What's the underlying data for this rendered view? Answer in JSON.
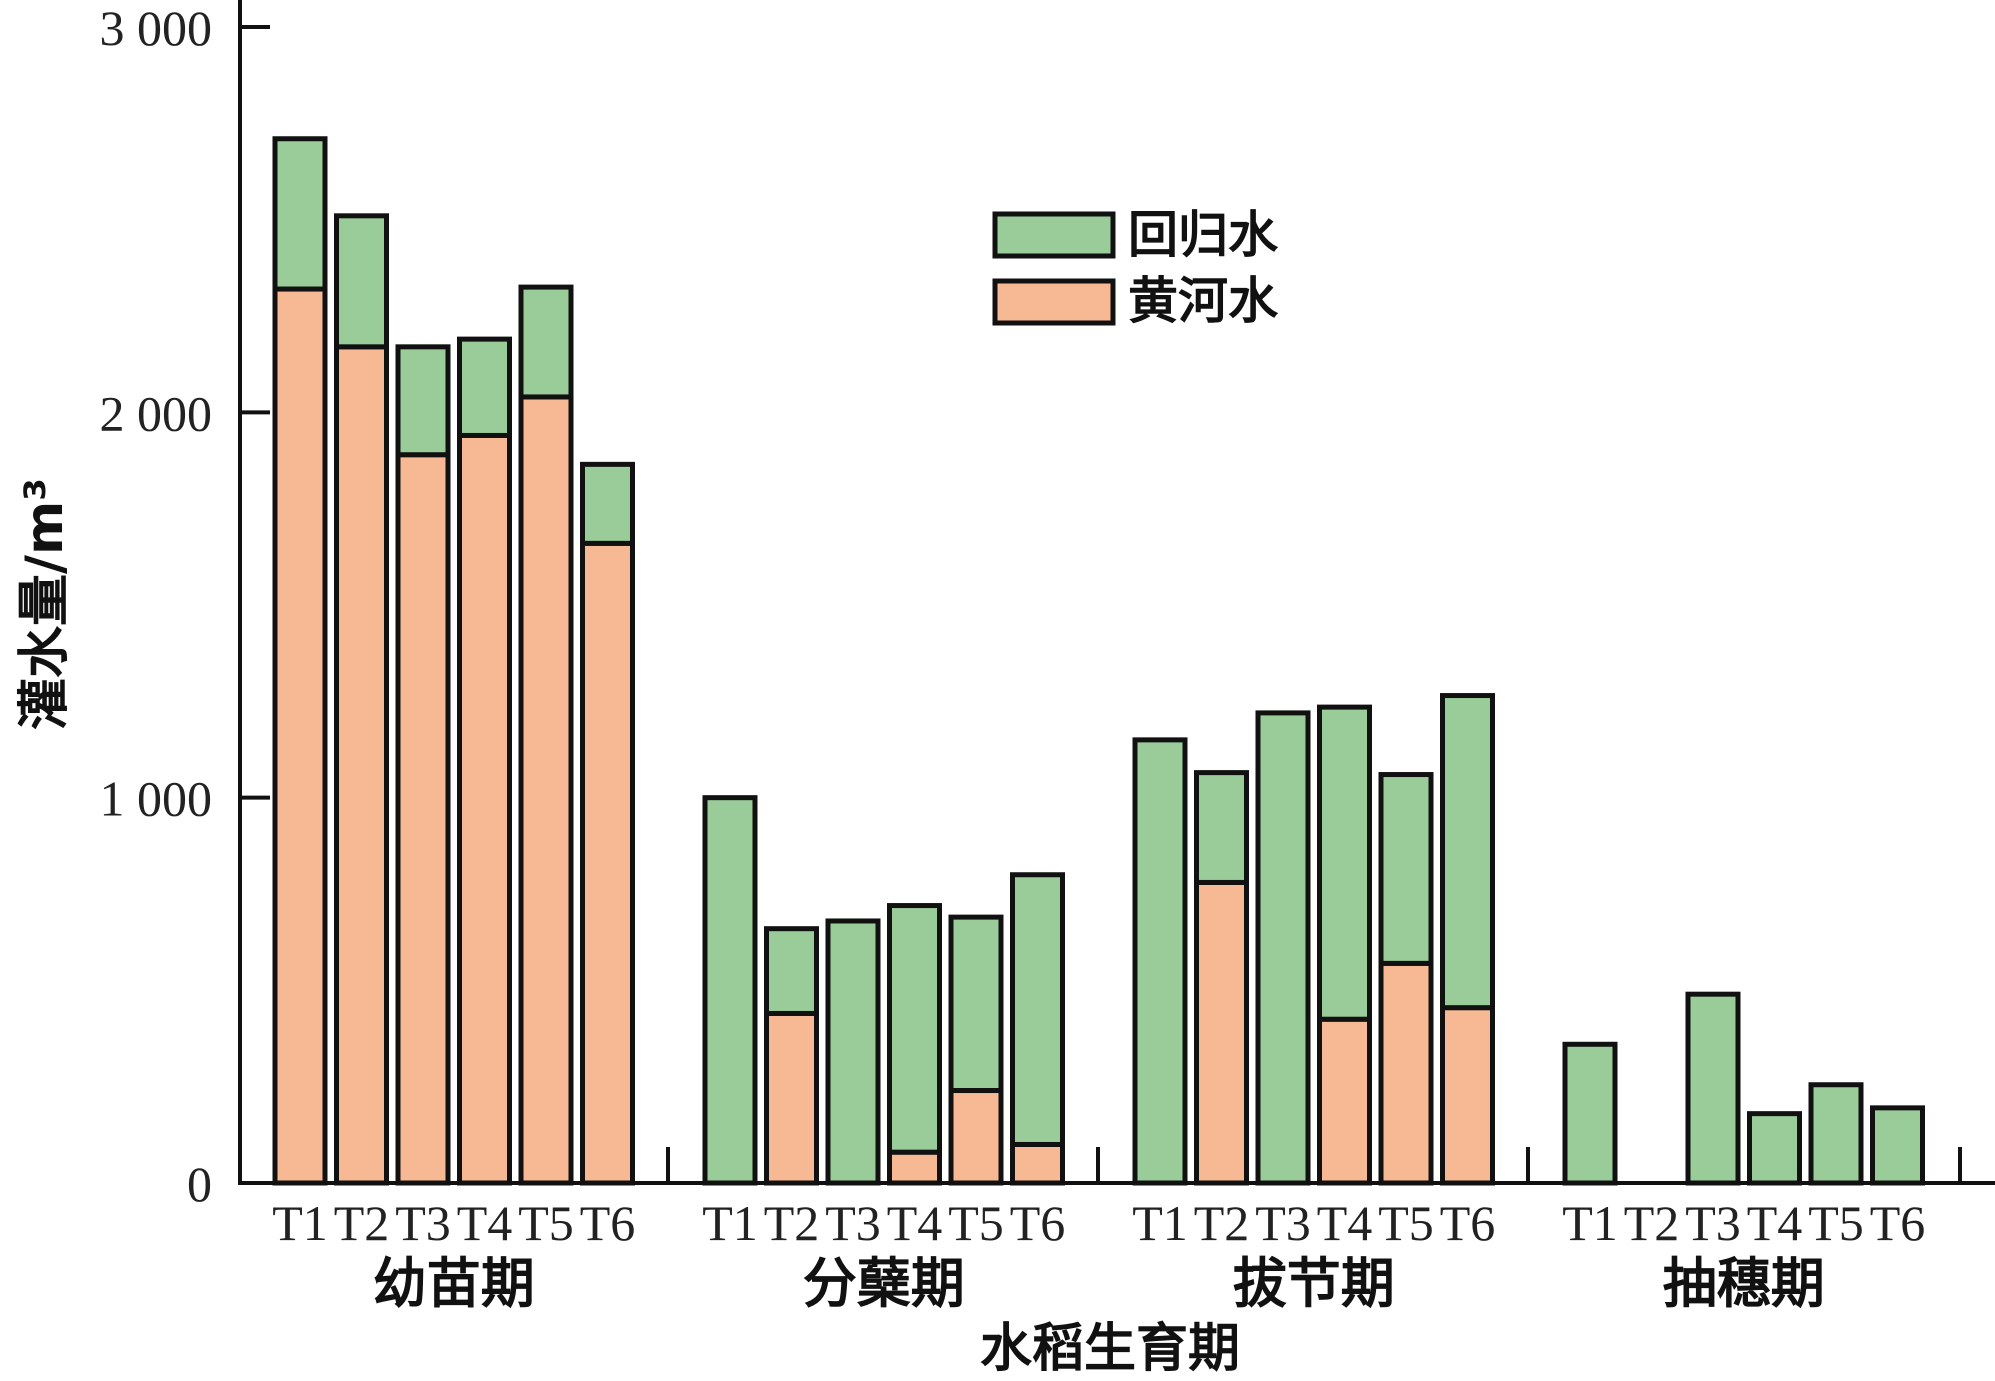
{
  "chart_data": {
    "type": "bar",
    "stacked": true,
    "ylabel": "灌水量/m³",
    "xlabel": "水稻生育期",
    "ylim": [
      0,
      3000
    ],
    "yticks": [
      0,
      1000,
      2000,
      3000
    ],
    "ytick_labels": [
      "0",
      "1 000",
      "2 000",
      "3 000"
    ],
    "groups": [
      "幼苗期",
      "分蘖期",
      "拔节期",
      "抽穗期"
    ],
    "categories": [
      "T1",
      "T2",
      "T3",
      "T4",
      "T5",
      "T6"
    ],
    "legend": {
      "position": "top-center",
      "entries": [
        "回归水",
        "黄河水"
      ]
    },
    "colors": {
      "回归水": "#99CC99",
      "黄河水": "#F7B993",
      "stroke": "#111111"
    },
    "series": [
      {
        "name": "黄河水",
        "values": [
          [
            2320,
            2170,
            1890,
            1940,
            2040,
            1660
          ],
          [
            0,
            440,
            0,
            80,
            240,
            100
          ],
          [
            0,
            780,
            0,
            425,
            570,
            455
          ],
          [
            0,
            0,
            0,
            0,
            0,
            0
          ]
        ]
      },
      {
        "name": "回归水",
        "values": [
          [
            390,
            340,
            280,
            250,
            285,
            205
          ],
          [
            1000,
            220,
            680,
            640,
            450,
            700
          ],
          [
            1150,
            285,
            1220,
            810,
            490,
            810
          ],
          [
            360,
            0,
            490,
            180,
            255,
            195
          ]
        ]
      }
    ]
  }
}
